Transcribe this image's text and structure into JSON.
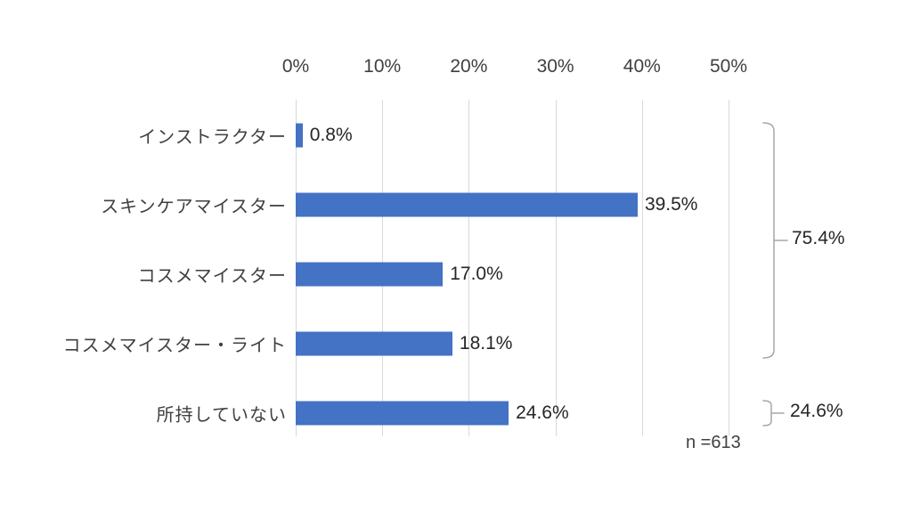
{
  "chart_data": {
    "type": "bar",
    "orientation": "horizontal",
    "title": "",
    "categories": [
      "インストラクター",
      "スキンケアマイスター",
      "コスメマイスター",
      "コスメマイスター・ライト",
      "所持していない"
    ],
    "values": [
      0.8,
      39.5,
      17.0,
      18.1,
      24.6
    ],
    "value_labels": [
      "0.8%",
      "39.5%",
      "17.0%",
      "18.1%",
      "24.6%"
    ],
    "x_ticks": [
      "0%",
      "10%",
      "20%",
      "30%",
      "40%",
      "50%"
    ],
    "x_tick_values": [
      0,
      10,
      20,
      30,
      40,
      50
    ],
    "xlim": [
      0,
      50
    ],
    "grid": true,
    "legend": "none",
    "bar_color": "#4472C4",
    "gridline_color": "#D9D9D9",
    "bracket_groups": [
      {
        "label": "75.4%",
        "category_indices": [
          0,
          1,
          2,
          3
        ]
      },
      {
        "label": "24.6%",
        "category_indices": [
          4
        ]
      }
    ],
    "sample_size_note": "n =613"
  }
}
